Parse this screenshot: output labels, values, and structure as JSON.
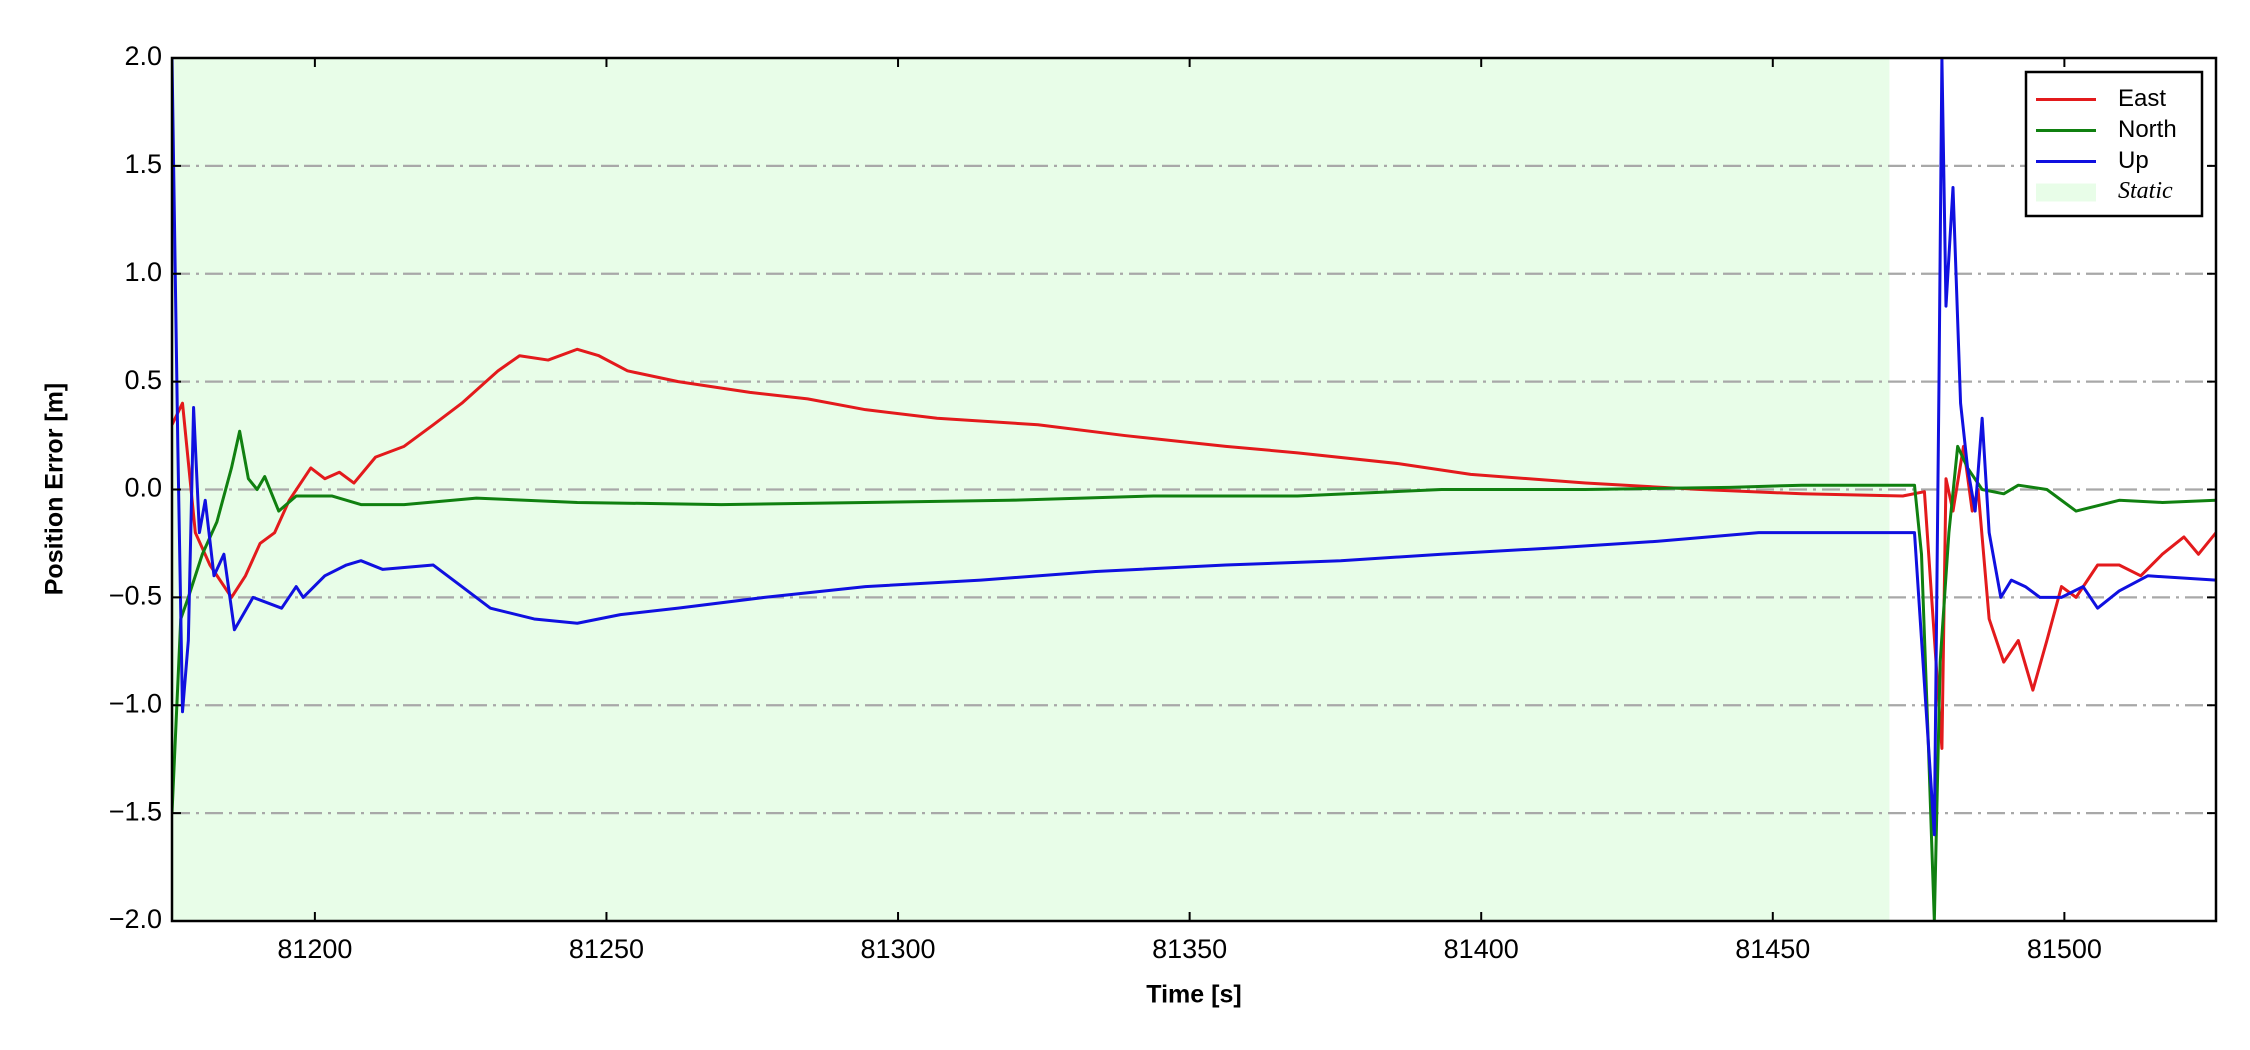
{
  "chart_data": {
    "type": "line",
    "xlabel": "Time [s]",
    "ylabel": "Position Error [m]",
    "xlim": [
      81175.5,
      81526
    ],
    "ylim": [
      -2.0,
      2.0
    ],
    "xticks": [
      81200,
      81250,
      81300,
      81350,
      81400,
      81450,
      81500
    ],
    "yticks": [
      {
        "value": -2.0,
        "label": "−2.0"
      },
      {
        "value": -1.5,
        "label": "−1.5"
      },
      {
        "value": -1.0,
        "label": "−1.0"
      },
      {
        "value": -0.5,
        "label": "−0.5"
      },
      {
        "value": 0.0,
        "label": "0.0"
      },
      {
        "value": 0.5,
        "label": "0.5"
      },
      {
        "value": 1.0,
        "label": "1.0"
      },
      {
        "value": 1.5,
        "label": "1.5"
      },
      {
        "value": 2.0,
        "label": "2.0"
      }
    ],
    "grid": "y",
    "legend": "upper right",
    "spans": [
      {
        "name": "Static",
        "color": "#e8fde8",
        "x": [
          81175.5,
          81470
        ]
      }
    ],
    "series": [
      {
        "name": "East",
        "color": "#e31a1c",
        "x": [
          81175.5,
          81177.3,
          81179.5,
          81182.0,
          81185.7,
          81188.1,
          81190.6,
          81193.1,
          81195.6,
          81199.3,
          81201.7,
          81204.2,
          81206.7,
          81210.4,
          81215.3,
          81220.3,
          81225.2,
          81231.4,
          81235.1,
          81240.0,
          81245.0,
          81248.7,
          81253.6,
          81262.3,
          81274.6,
          81284.5,
          81294.4,
          81306.7,
          81324.0,
          81338.9,
          81356.2,
          81368.5,
          81385.8,
          81398.2,
          81417.9,
          81437.7,
          81455.0,
          81472.3,
          81476.0,
          81479.0,
          81479.7,
          81480.9,
          81482.7,
          81484.2,
          81485.2,
          81487.1,
          81489.6,
          81492.1,
          81494.6,
          81497.0,
          81499.5,
          81502.0,
          81505.7,
          81509.4,
          81513.1,
          81516.8,
          81520.5,
          81523.0,
          81526.0
        ],
        "values": [
          0.3,
          0.4,
          -0.2,
          -0.35,
          -0.5,
          -0.4,
          -0.25,
          -0.2,
          -0.05,
          0.1,
          0.05,
          0.08,
          0.03,
          0.15,
          0.2,
          0.3,
          0.4,
          0.55,
          0.62,
          0.6,
          0.65,
          0.62,
          0.55,
          0.5,
          0.45,
          0.42,
          0.37,
          0.33,
          0.3,
          0.25,
          0.2,
          0.17,
          0.12,
          0.07,
          0.03,
          0.0,
          -0.02,
          -0.03,
          -0.01,
          -1.2,
          0.05,
          -0.1,
          0.2,
          -0.1,
          0.0,
          -0.6,
          -0.8,
          -0.7,
          -0.93,
          -0.7,
          -0.45,
          -0.5,
          -0.35,
          -0.35,
          -0.4,
          -0.3,
          -0.22,
          -0.3,
          -0.2
        ]
      },
      {
        "name": "North",
        "color": "#108010",
        "x": [
          81175.5,
          81177.0,
          81178.3,
          81180.7,
          81183.2,
          81185.7,
          81187.1,
          81188.6,
          81190.1,
          81191.4,
          81193.8,
          81196.8,
          81202.9,
          81207.9,
          81215.3,
          81227.7,
          81245.0,
          81269.7,
          81294.4,
          81319.1,
          81343.8,
          81368.5,
          81393.2,
          81417.9,
          81442.6,
          81455.0,
          81474.3,
          81475.5,
          81476.7,
          81477.7,
          81478.7,
          81480.2,
          81481.7,
          81483.4,
          81485.9,
          81489.6,
          81492.1,
          81497.0,
          81502.0,
          81509.4,
          81516.8,
          81526.0
        ],
        "values": [
          -1.5,
          -0.6,
          -0.5,
          -0.3,
          -0.15,
          0.1,
          0.27,
          0.05,
          0.0,
          0.06,
          -0.1,
          -0.03,
          -0.03,
          -0.07,
          -0.07,
          -0.04,
          -0.06,
          -0.07,
          -0.06,
          -0.05,
          -0.03,
          -0.03,
          0.0,
          0.0,
          0.01,
          0.02,
          0.02,
          -0.3,
          -1.2,
          -2.0,
          -0.8,
          -0.2,
          0.2,
          0.1,
          0.0,
          -0.02,
          0.02,
          0.0,
          -0.1,
          -0.05,
          -0.06,
          -0.05
        ]
      },
      {
        "name": "Up",
        "color": "#1010e0",
        "x": [
          81175.5,
          81176.5,
          81177.3,
          81178.3,
          81179.2,
          81180.2,
          81181.2,
          81182.7,
          81184.4,
          81186.2,
          81189.4,
          81194.3,
          81196.8,
          81198.0,
          81201.7,
          81205.4,
          81207.9,
          81211.6,
          81220.3,
          81225.2,
          81230.1,
          81237.6,
          81245.0,
          81252.4,
          81262.3,
          81277.1,
          81294.4,
          81314.2,
          81333.9,
          81356.2,
          81375.9,
          81393.2,
          81413.0,
          81430.3,
          81447.6,
          81467.4,
          81474.3,
          81476.0,
          81477.7,
          81478.5,
          81479.0,
          81479.7,
          81480.9,
          81482.2,
          81483.4,
          81484.7,
          81485.9,
          81487.1,
          81489.1,
          81490.9,
          81493.3,
          81495.8,
          81499.5,
          81503.2,
          81505.7,
          81509.4,
          81514.3,
          81526.0
        ],
        "values": [
          2.0,
          0.2,
          -1.03,
          -0.7,
          0.38,
          -0.2,
          -0.05,
          -0.4,
          -0.3,
          -0.65,
          -0.5,
          -0.55,
          -0.45,
          -0.5,
          -0.4,
          -0.35,
          -0.33,
          -0.37,
          -0.35,
          -0.45,
          -0.55,
          -0.6,
          -0.62,
          -0.58,
          -0.55,
          -0.5,
          -0.45,
          -0.42,
          -0.38,
          -0.35,
          -0.33,
          -0.3,
          -0.27,
          -0.24,
          -0.2,
          -0.2,
          -0.2,
          -0.9,
          -1.6,
          0.5,
          2.0,
          0.85,
          1.4,
          0.4,
          0.1,
          -0.1,
          0.33,
          -0.2,
          -0.5,
          -0.42,
          -0.45,
          -0.5,
          -0.5,
          -0.45,
          -0.55,
          -0.47,
          -0.4,
          -0.42
        ]
      }
    ]
  }
}
